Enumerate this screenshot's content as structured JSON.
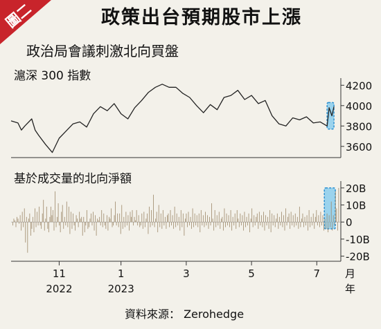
{
  "header": {
    "badge": "圖二",
    "title": "政策出台預期股市上漲",
    "subtitle": "政治局會議刺激北向買盤"
  },
  "footer": {
    "source": "資料來源： Zerohedge"
  },
  "colors": {
    "background": "#f3f1ea",
    "badge": "#c8242b",
    "line": "#222222",
    "bars": "#a08c6e",
    "highlight_fill": "#7ec8ee",
    "highlight_stroke": "#2a8fd0"
  },
  "chart_data": [
    {
      "type": "line",
      "title": "滬深 300 指數",
      "y_axis_side": "right",
      "yticks": [
        "4200",
        "4000",
        "3800",
        "3600"
      ],
      "ylim": [
        3490,
        4270
      ],
      "xlim": [
        0,
        48
      ],
      "grid": false,
      "highlight": {
        "x_from": 46,
        "x_to": 47,
        "y_from": 3770,
        "y_to": 4030
      },
      "x": [
        0,
        1,
        1.5,
        2,
        3,
        3.5,
        4,
        5,
        6,
        7,
        8,
        9,
        10,
        11,
        12,
        13,
        14,
        15,
        16,
        17,
        18,
        19,
        20,
        21,
        22,
        23,
        24,
        25,
        26,
        27,
        28,
        29,
        30,
        31,
        32,
        33,
        34,
        35,
        36,
        37,
        38,
        39,
        40,
        41,
        42,
        43,
        44,
        45,
        46,
        46.3,
        46.7,
        47
      ],
      "values": [
        3850,
        3830,
        3760,
        3800,
        3870,
        3760,
        3710,
        3620,
        3540,
        3680,
        3750,
        3820,
        3840,
        3790,
        3920,
        3990,
        3950,
        4020,
        3920,
        3870,
        3980,
        4050,
        4130,
        4180,
        4210,
        4180,
        4180,
        4120,
        4080,
        4000,
        3930,
        4010,
        3960,
        4080,
        4100,
        4150,
        4060,
        4100,
        4020,
        4050,
        3900,
        3820,
        3800,
        3880,
        3860,
        3890,
        3830,
        3840,
        3800,
        3980,
        3900,
        3990
      ]
    },
    {
      "type": "bar",
      "title": "基於成交量的北向淨額",
      "y_axis_side": "right",
      "yticks": [
        "20B",
        "10B",
        "0",
        "-10B",
        "-20B"
      ],
      "ylim": [
        -23,
        24
      ],
      "xlim": [
        0,
        48
      ],
      "grid": false,
      "highlight": {
        "x_from": 45.6,
        "x_to": 47.2,
        "y_from": 20,
        "y_to": -4
      },
      "x_labels": [
        {
          "x": 7,
          "month": "11",
          "year": "2022"
        },
        {
          "x": 16,
          "month": "1",
          "year": "2023"
        },
        {
          "x": 25.5,
          "month": "3",
          "year": ""
        },
        {
          "x": 35,
          "month": "5",
          "year": ""
        },
        {
          "x": 44.5,
          "month": "7",
          "year": ""
        }
      ],
      "unit_label": "月",
      "year_label": "年",
      "values": [
        -2,
        2,
        1,
        -3,
        3,
        2,
        -1,
        4,
        -5,
        6,
        -3,
        8,
        -12,
        3,
        -18,
        2,
        5,
        -8,
        -4,
        3,
        -6,
        8,
        -3,
        6,
        -2,
        9,
        -2,
        -4,
        5,
        13,
        -5,
        2,
        9,
        -4,
        -6,
        3,
        9,
        4,
        7,
        -5,
        18,
        -3,
        3,
        11,
        -2,
        -6,
        6,
        10,
        -4,
        3,
        -2,
        12,
        -3,
        9,
        -7,
        6,
        -4,
        5,
        -2,
        -5,
        4,
        2,
        -3,
        6,
        2,
        3,
        -8,
        3,
        -6,
        -2,
        7,
        -4,
        -3,
        2,
        5,
        -2,
        6,
        -5,
        4,
        -8,
        2,
        1,
        3,
        -2,
        7,
        -3,
        5,
        -2,
        -4,
        4,
        -5,
        3,
        2,
        8,
        -3,
        -2,
        4,
        12,
        -2,
        5,
        -3,
        5,
        -7,
        10,
        -4,
        3,
        -3,
        6,
        -2,
        4,
        -5,
        6,
        3,
        7,
        -2,
        3,
        1,
        7,
        -2,
        4,
        -3,
        -2,
        5,
        -4,
        6,
        -3,
        2,
        5,
        -7,
        9,
        -3,
        7,
        -2,
        16,
        -3,
        2,
        6,
        -6,
        10,
        -3,
        5,
        -4,
        7,
        -2,
        3,
        -4,
        4,
        5,
        -3,
        7,
        -2,
        4,
        -4,
        9,
        -3,
        5,
        -2,
        3,
        -5,
        7,
        -3,
        5,
        -8,
        2,
        5,
        -3,
        6,
        -2,
        3,
        -4,
        8,
        -3,
        5,
        -2,
        4,
        -3,
        5,
        -6,
        7,
        -2,
        4,
        -3,
        6,
        -2,
        4,
        -4,
        3,
        -2,
        11,
        2,
        -5,
        7,
        -3,
        4,
        -2,
        6,
        -4,
        2,
        3,
        -5,
        8,
        -3,
        5,
        -2,
        4,
        -3,
        7,
        -5,
        3,
        -2,
        5,
        -4,
        7,
        2,
        -3,
        5,
        -2,
        4,
        -5,
        6,
        -3,
        3,
        -2,
        5,
        -6,
        2,
        8,
        -3,
        4,
        -2,
        3,
        5,
        -4,
        6,
        -2,
        4,
        -3,
        6,
        -5,
        4,
        -2,
        3,
        -4,
        7,
        -6,
        5,
        -2,
        4,
        -3,
        2,
        5,
        -4,
        3,
        -2,
        6,
        -3,
        4,
        -5,
        8,
        -2,
        3,
        5,
        -4,
        6,
        -2,
        4,
        -3,
        5,
        -2,
        3,
        -4,
        9,
        -3,
        2,
        5,
        -3,
        3,
        -2,
        4,
        -5,
        7,
        -3,
        3,
        -2,
        5,
        -4,
        3,
        7,
        -2,
        4,
        -3,
        6,
        -2,
        4,
        -5,
        2,
        -4,
        5,
        -6,
        4,
        -3,
        12,
        -5,
        4,
        -2,
        18,
        8,
        -5,
        20
      ]
    }
  ]
}
